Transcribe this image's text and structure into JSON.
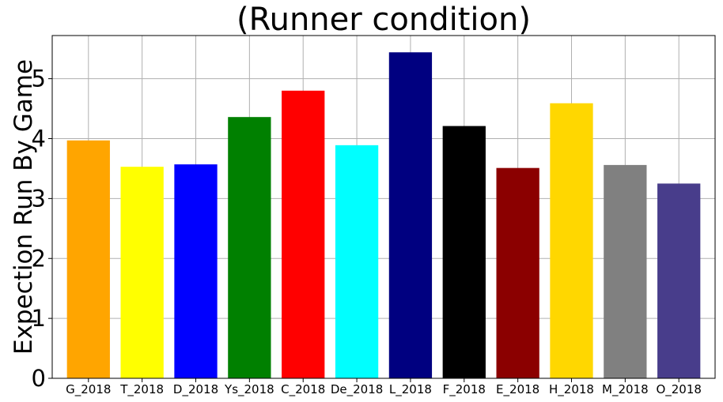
{
  "chart_data": {
    "type": "bar",
    "title": "(Runner condition)",
    "xlabel": "",
    "ylabel": "Expection Run By Game",
    "categories": [
      "G_2018",
      "T_2018",
      "D_2018",
      "Ys_2018",
      "C_2018",
      "De_2018",
      "L_2018",
      "F_2018",
      "E_2018",
      "H_2018",
      "M_2018",
      "O_2018"
    ],
    "values": [
      3.97,
      3.53,
      3.57,
      4.36,
      4.8,
      3.89,
      5.44,
      4.21,
      3.51,
      4.59,
      3.56,
      3.25
    ],
    "colors": [
      "#ffa500",
      "#ffff00",
      "#0000ff",
      "#008000",
      "#ff0000",
      "#00ffff",
      "#000080",
      "#000000",
      "#8b0000",
      "#ffd700",
      "#808080",
      "#483d8b"
    ],
    "ylim": [
      0,
      5.72
    ],
    "yticks": [
      "0",
      "1",
      "2",
      "3",
      "4",
      "5"
    ],
    "grid": true
  }
}
